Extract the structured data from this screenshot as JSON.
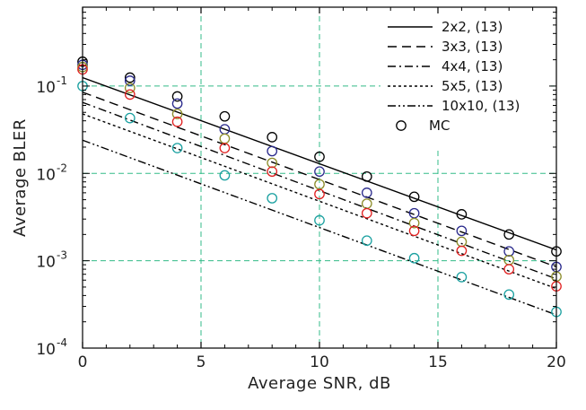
{
  "chart_data": {
    "type": "line",
    "title": "",
    "xlabel": "Average SNR, dB",
    "ylabel": "Average BLER",
    "x_axis": {
      "range": [
        0,
        20
      ],
      "ticks": [
        0,
        5,
        10,
        15,
        20
      ],
      "tick_labels": [
        "0",
        "5",
        "10",
        "15",
        "20"
      ]
    },
    "y_axis": {
      "scale": "log",
      "range": [
        0.0001,
        0.8
      ],
      "ticks": [
        0.0001,
        0.001,
        0.01,
        0.1
      ],
      "tick_labels": [
        {
          "base": "10",
          "exp": "-4"
        },
        {
          "base": "10",
          "exp": "-3"
        },
        {
          "base": "10",
          "exp": "-2"
        },
        {
          "base": "10",
          "exp": "-1"
        }
      ]
    },
    "grid": {
      "style": "dashed",
      "color": "#33bb88",
      "x": [
        5,
        10,
        15
      ],
      "y": [
        0.001,
        0.01,
        0.1
      ]
    },
    "legend": {
      "position": "top-right"
    },
    "series": [
      {
        "name": "2x2, (13)",
        "kind": "line",
        "dash": "",
        "color": "#000000",
        "points": [
          [
            0,
            0.125
          ],
          [
            20,
            0.00133
          ]
        ]
      },
      {
        "name": "3x3, (13)",
        "kind": "line",
        "dash": "10 6",
        "color": "#000000",
        "points": [
          [
            0,
            0.085
          ],
          [
            20,
            0.00085
          ]
        ]
      },
      {
        "name": "4x4, (13)",
        "kind": "line",
        "dash": "9 4 2 4",
        "color": "#000000",
        "points": [
          [
            0,
            0.065
          ],
          [
            20,
            0.00062
          ]
        ]
      },
      {
        "name": "5x5, (13)",
        "kind": "line",
        "dash": "3 3",
        "color": "#000000",
        "points": [
          [
            0,
            0.048
          ],
          [
            20,
            0.00048
          ]
        ]
      },
      {
        "name": "10x10, (13)",
        "kind": "line",
        "dash": "9 3 2 3 2 3",
        "color": "#000000",
        "points": [
          [
            0,
            0.024
          ],
          [
            20,
            0.00024
          ]
        ]
      },
      {
        "name": "MC",
        "kind": "marker",
        "color": "#000000",
        "points": []
      }
    ],
    "mc_points": [
      {
        "color": "#000000",
        "points": [
          [
            0,
            0.19
          ],
          [
            2,
            0.125
          ],
          [
            4,
            0.076
          ],
          [
            6,
            0.045
          ],
          [
            8,
            0.026
          ],
          [
            10,
            0.0155
          ],
          [
            12,
            0.0092
          ],
          [
            14,
            0.0054
          ],
          [
            16,
            0.0034
          ],
          [
            18,
            0.002
          ],
          [
            20,
            0.00128
          ]
        ]
      },
      {
        "color": "#2a2a8c",
        "points": [
          [
            0,
            0.175
          ],
          [
            2,
            0.115
          ],
          [
            4,
            0.063
          ],
          [
            6,
            0.032
          ],
          [
            8,
            0.018
          ],
          [
            10,
            0.0105
          ],
          [
            12,
            0.006
          ],
          [
            14,
            0.0035
          ],
          [
            16,
            0.0022
          ],
          [
            18,
            0.00128
          ],
          [
            20,
            0.00085
          ]
        ]
      },
      {
        "color": "#8c8c2a",
        "points": [
          [
            0,
            0.165
          ],
          [
            2,
            0.095
          ],
          [
            4,
            0.048
          ],
          [
            6,
            0.025
          ],
          [
            8,
            0.0132
          ],
          [
            10,
            0.0075
          ],
          [
            12,
            0.0045
          ],
          [
            14,
            0.0027
          ],
          [
            16,
            0.00165
          ],
          [
            18,
            0.00102
          ],
          [
            20,
            0.00066
          ]
        ]
      },
      {
        "color": "#e02020",
        "points": [
          [
            0,
            0.155
          ],
          [
            2,
            0.08
          ],
          [
            4,
            0.039
          ],
          [
            6,
            0.0195
          ],
          [
            8,
            0.0105
          ],
          [
            10,
            0.0058
          ],
          [
            12,
            0.0035
          ],
          [
            14,
            0.0022
          ],
          [
            16,
            0.0013
          ],
          [
            18,
            0.0008
          ],
          [
            20,
            0.00051
          ]
        ]
      },
      {
        "color": "#1aa0a0",
        "points": [
          [
            0,
            0.1
          ],
          [
            2,
            0.043
          ],
          [
            4,
            0.0195
          ],
          [
            6,
            0.0095
          ],
          [
            8,
            0.0052
          ],
          [
            10,
            0.0029
          ],
          [
            12,
            0.0017
          ],
          [
            14,
            0.00107
          ],
          [
            16,
            0.00065
          ],
          [
            18,
            0.00041
          ],
          [
            20,
            0.00026
          ]
        ]
      }
    ]
  }
}
